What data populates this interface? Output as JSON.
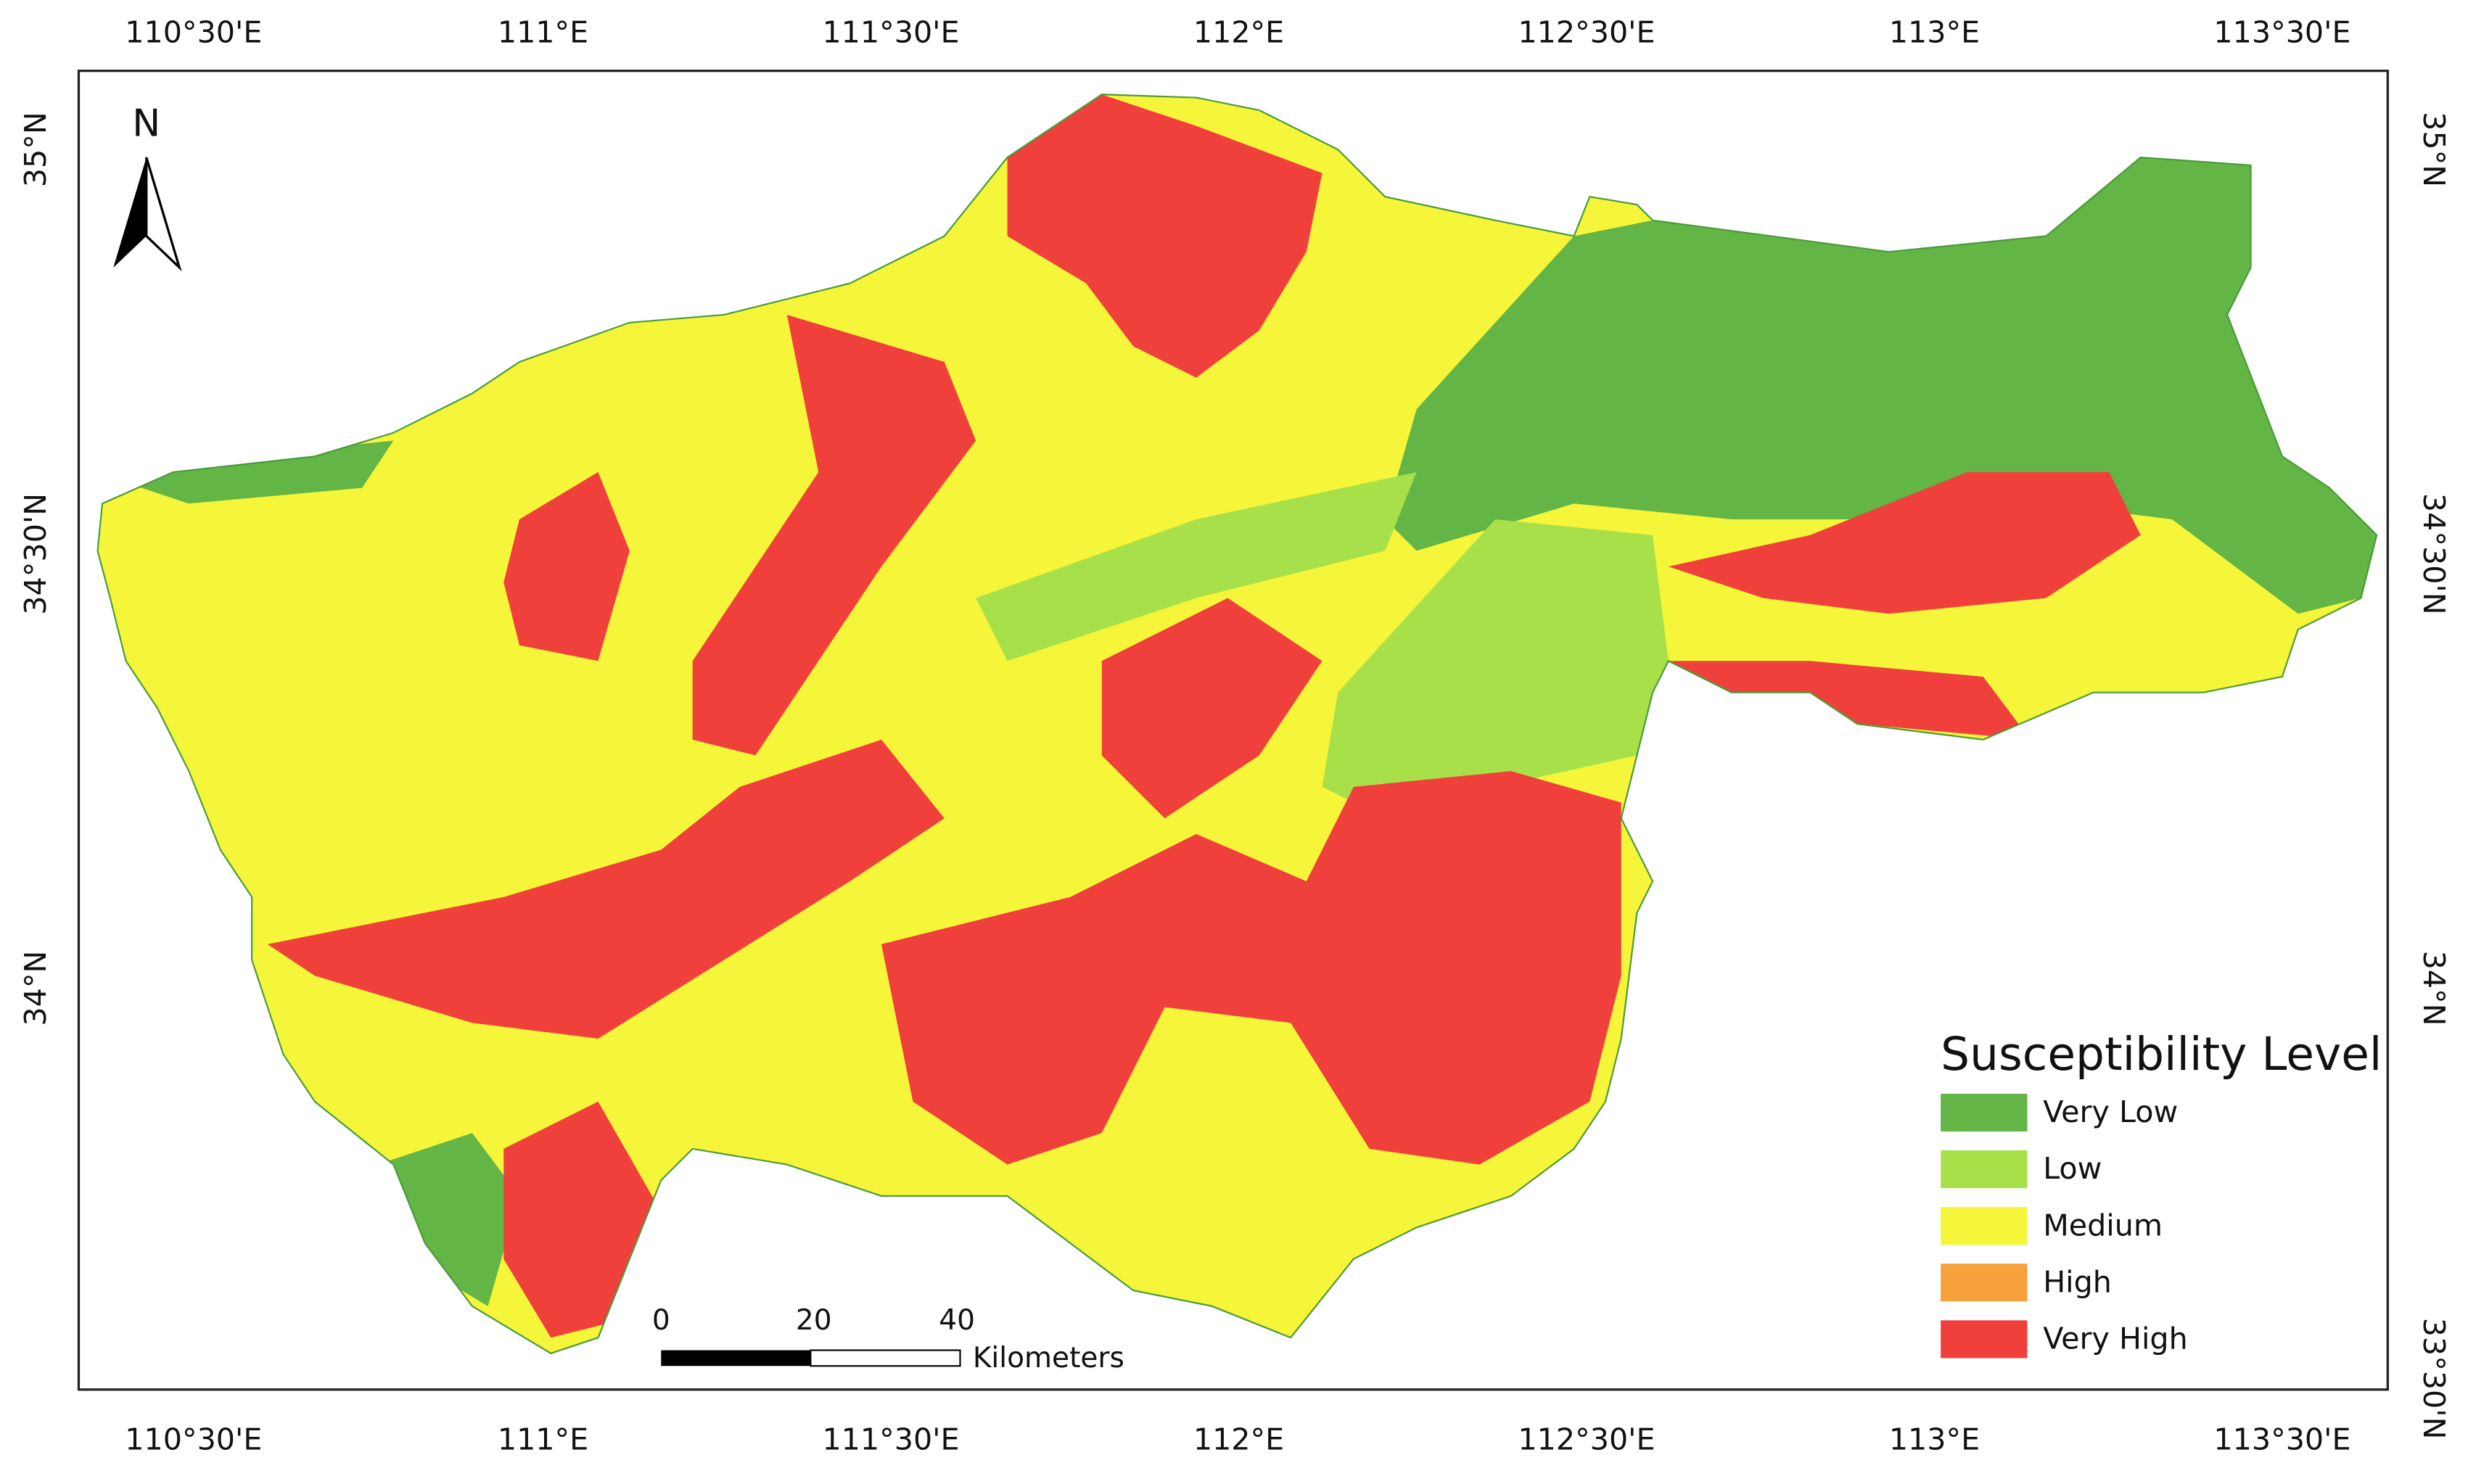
{
  "map": {
    "north_arrow": "N",
    "graticule": {
      "top": [
        "110°30'E",
        "111°E",
        "111°30'E",
        "112°E",
        "112°30'E",
        "113°E",
        "113°30'E"
      ],
      "bottom": [
        "110°30'E",
        "111°E",
        "111°30'E",
        "112°E",
        "112°30'E",
        "113°E",
        "113°30'E"
      ],
      "left": [
        "35°N",
        "34°30'N",
        "34°N"
      ],
      "right": [
        "35°N",
        "34°30'N",
        "34°N",
        "33°30'N"
      ]
    },
    "scale_bar": {
      "labels": [
        "0",
        "20",
        "40"
      ],
      "unit": "Kilometers"
    },
    "legend": {
      "title": "Susceptibility Level",
      "items": [
        {
          "label": "Very Low",
          "color": "#63b546"
        },
        {
          "label": "Low",
          "color": "#a8e04a"
        },
        {
          "label": "Medium",
          "color": "#f5f53a"
        },
        {
          "label": "High",
          "color": "#f7a13c"
        },
        {
          "label": "Very High",
          "color": "#f0403c"
        }
      ]
    }
  }
}
